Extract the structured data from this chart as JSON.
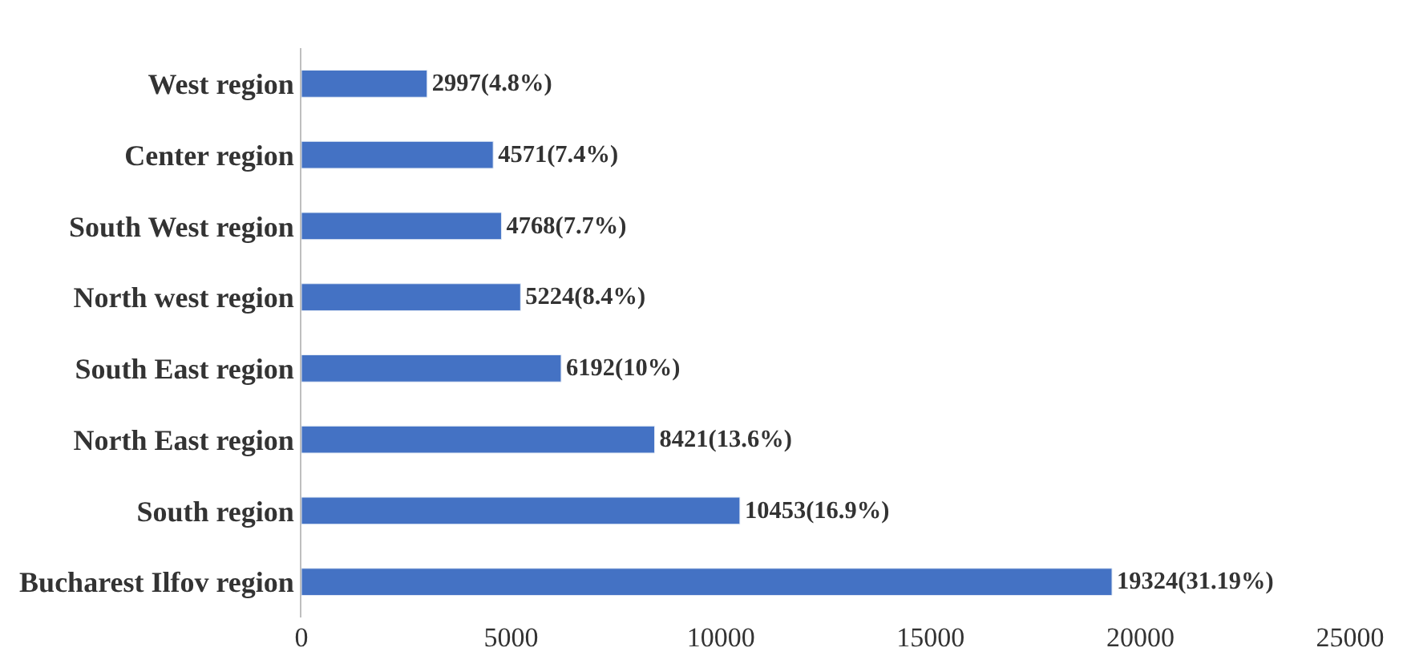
{
  "chart_data": {
    "type": "bar",
    "orientation": "horizontal",
    "categories": [
      "West region",
      "Center region",
      "South West region",
      "North west region",
      "South East region",
      "North East region",
      "South region",
      "Bucharest Ilfov region"
    ],
    "values": [
      2997,
      4571,
      4768,
      5224,
      6192,
      8421,
      10453,
      19324
    ],
    "value_labels": [
      "2997(4.8%)",
      "4571(7.4%)",
      "4768(7.7%)",
      "5224(8.4%)",
      "6192(10%)",
      "8421(13.6%)",
      "10453(16.9%)",
      "19324(31.19%)"
    ],
    "color": "#4472c4",
    "xlim": [
      0,
      25000
    ],
    "xticks": [
      0,
      5000,
      10000,
      15000,
      20000,
      25000
    ]
  }
}
